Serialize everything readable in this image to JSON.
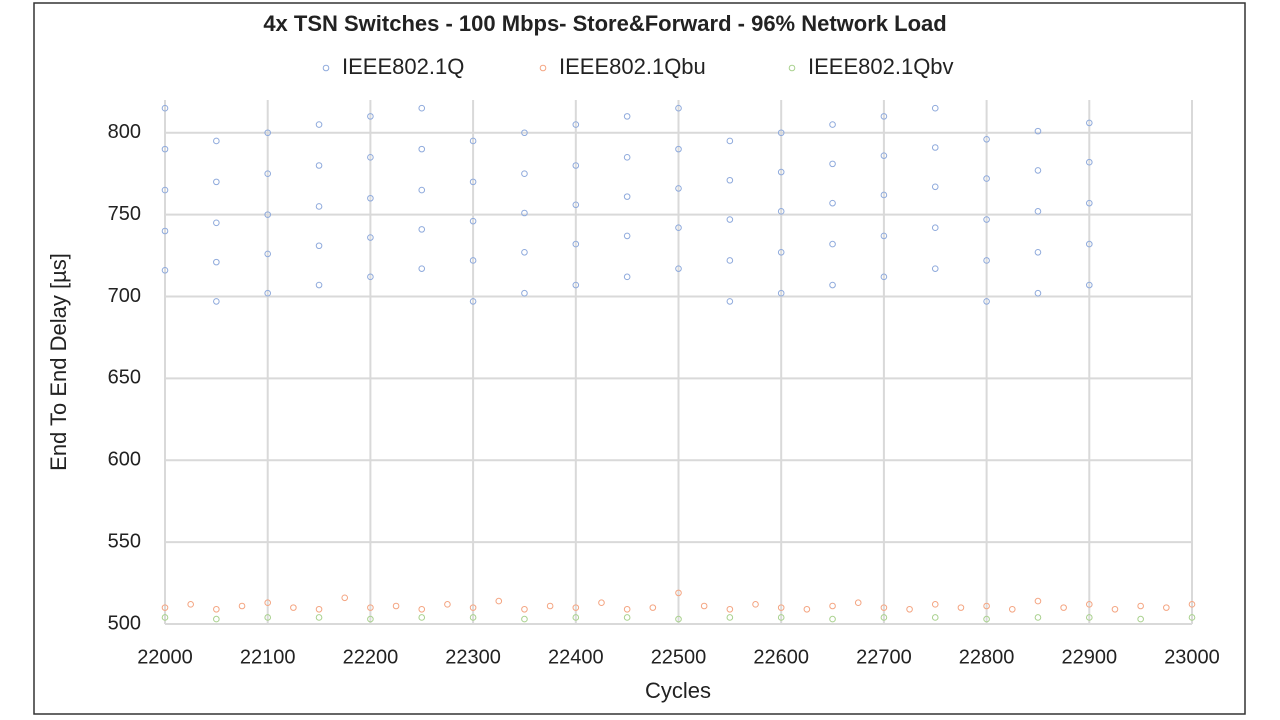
{
  "chart_data": {
    "type": "scatter",
    "title": "4x TSN Switches - 100 Mbps- Store&Forward - 96% Network Load",
    "x_label": "Cycles",
    "y_label": "End To End Delay [µs]",
    "xlim": [
      22000,
      23000
    ],
    "xticks": [
      22000,
      22100,
      22200,
      22300,
      22400,
      22500,
      22600,
      22700,
      22800,
      22900,
      23000
    ],
    "ylim": [
      500,
      820
    ],
    "yticks": [
      500,
      550,
      600,
      650,
      700,
      750,
      800
    ],
    "grid": true,
    "legend": "top",
    "series": [
      {
        "name": "IEEE802.1Q",
        "color": "#8faadc",
        "x": [
          22000,
          22050,
          22100,
          22150,
          22200,
          22250,
          22300,
          22350,
          22400,
          22450,
          22500,
          22550,
          22600,
          22650,
          22700,
          22750,
          22800,
          22850,
          22900,
          22000,
          22050,
          22100,
          22150,
          22200,
          22250,
          22300,
          22350,
          22400,
          22450,
          22500,
          22550,
          22600,
          22650,
          22700,
          22750,
          22800,
          22850,
          22900,
          22000,
          22050,
          22100,
          22150,
          22200,
          22250,
          22300,
          22350,
          22400,
          22450,
          22500,
          22550,
          22600,
          22650,
          22700,
          22750,
          22800,
          22850,
          22900,
          22000,
          22050,
          22100,
          22150,
          22200,
          22250,
          22300,
          22350,
          22400,
          22450,
          22500,
          22550,
          22600,
          22650,
          22700,
          22750,
          22800,
          22850,
          22900,
          22000,
          22050,
          22100,
          22150,
          22200,
          22250,
          22300,
          22350,
          22400,
          22450,
          22500,
          22550,
          22600,
          22650,
          22700,
          22750,
          22800,
          22850,
          22900
        ],
        "values": [
          815,
          697,
          702,
          707,
          712,
          717,
          722,
          727,
          732,
          737,
          742,
          747,
          752,
          757,
          762,
          767,
          772,
          777,
          782,
          790,
          795,
          800,
          805,
          810,
          815,
          697,
          702,
          707,
          712,
          717,
          722,
          727,
          732,
          737,
          742,
          747,
          752,
          757,
          765,
          770,
          775,
          780,
          785,
          790,
          795,
          800,
          805,
          810,
          815,
          697,
          702,
          707,
          712,
          717,
          722,
          727,
          732,
          740,
          745,
          750,
          755,
          760,
          765,
          770,
          775,
          780,
          785,
          790,
          795,
          800,
          805,
          810,
          815,
          697,
          702,
          707,
          716,
          721,
          726,
          731,
          736,
          741,
          746,
          751,
          756,
          761,
          766,
          771,
          776,
          781,
          786,
          791,
          796,
          801,
          806
        ]
      },
      {
        "name": "IEEE802.1Qbu",
        "color": "#f4a582",
        "x": [
          22000,
          22025,
          22050,
          22075,
          22100,
          22125,
          22150,
          22175,
          22200,
          22225,
          22250,
          22275,
          22300,
          22325,
          22350,
          22375,
          22400,
          22425,
          22450,
          22475,
          22500,
          22525,
          22550,
          22575,
          22600,
          22625,
          22650,
          22675,
          22700,
          22725,
          22750,
          22775,
          22800,
          22825,
          22850,
          22875,
          22900,
          22925,
          22950,
          22975,
          23000
        ],
        "values": [
          510,
          512,
          509,
          511,
          513,
          510,
          509,
          516,
          510,
          511,
          509,
          512,
          510,
          514,
          509,
          511,
          510,
          513,
          509,
          510,
          519,
          511,
          509,
          512,
          510,
          509,
          511,
          513,
          510,
          509,
          512,
          510,
          511,
          509,
          514,
          510,
          512,
          509,
          511,
          510,
          512
        ]
      },
      {
        "name": "IEEE802.1Qbv",
        "color": "#a9d18e",
        "x": [
          22000,
          22050,
          22100,
          22150,
          22200,
          22250,
          22300,
          22350,
          22400,
          22450,
          22500,
          22550,
          22600,
          22650,
          22700,
          22750,
          22800,
          22850,
          22900,
          22950,
          23000
        ],
        "values": [
          504,
          503,
          504,
          504,
          503,
          504,
          504,
          503,
          504,
          504,
          503,
          504,
          504,
          503,
          504,
          504,
          503,
          504,
          504,
          503,
          504
        ]
      }
    ]
  }
}
